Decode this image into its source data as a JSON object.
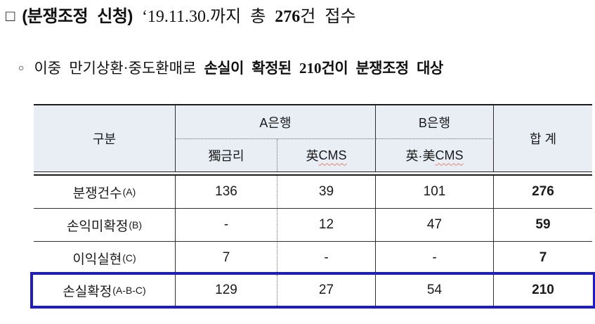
{
  "heading": {
    "bullet": "□",
    "label_bold": "(분쟁조정 신청)",
    "text_mid": "‘19.11.30.까지 총",
    "count_bold": "276",
    "text_post": "건 접수"
  },
  "subheading": {
    "bullet": "○",
    "text_regular": "이중 만기상환·중도환매로",
    "text_bold_1": "손실이 확정된",
    "count_bold": "210",
    "text_bold_2": "건이 분쟁조정 대상"
  },
  "table": {
    "header": {
      "category": "구분",
      "bank_a": "A은행",
      "bank_b": "B은행",
      "total": "합 계",
      "sub_a1": "獨금리",
      "sub_a2_prefix": "英",
      "sub_a2_latin": "CMS",
      "sub_b1_prefix": "英·美",
      "sub_b1_latin": "CMS"
    },
    "rows": [
      {
        "label": "분쟁건수",
        "label_sub": "(A)",
        "a1": "136",
        "a2": "39",
        "b1": "101",
        "total": "276"
      },
      {
        "label": "손익미확정",
        "label_sub": "(B)",
        "a1": "-",
        "a2": "12",
        "b1": "47",
        "total": "59"
      },
      {
        "label": "이익실현",
        "label_sub": "(C)",
        "a1": "7",
        "a2": "-",
        "b1": "-",
        "total": "7"
      },
      {
        "label": "손실확정",
        "label_sub": "(A-B-C)",
        "a1": "129",
        "a2": "27",
        "b1": "54",
        "total": "210"
      }
    ]
  },
  "colors": {
    "header_bg": "#e9eef5",
    "highlight_border": "#1c1ccd",
    "squiggle": "#e2826c",
    "border_dark": "#1b1b1b"
  }
}
